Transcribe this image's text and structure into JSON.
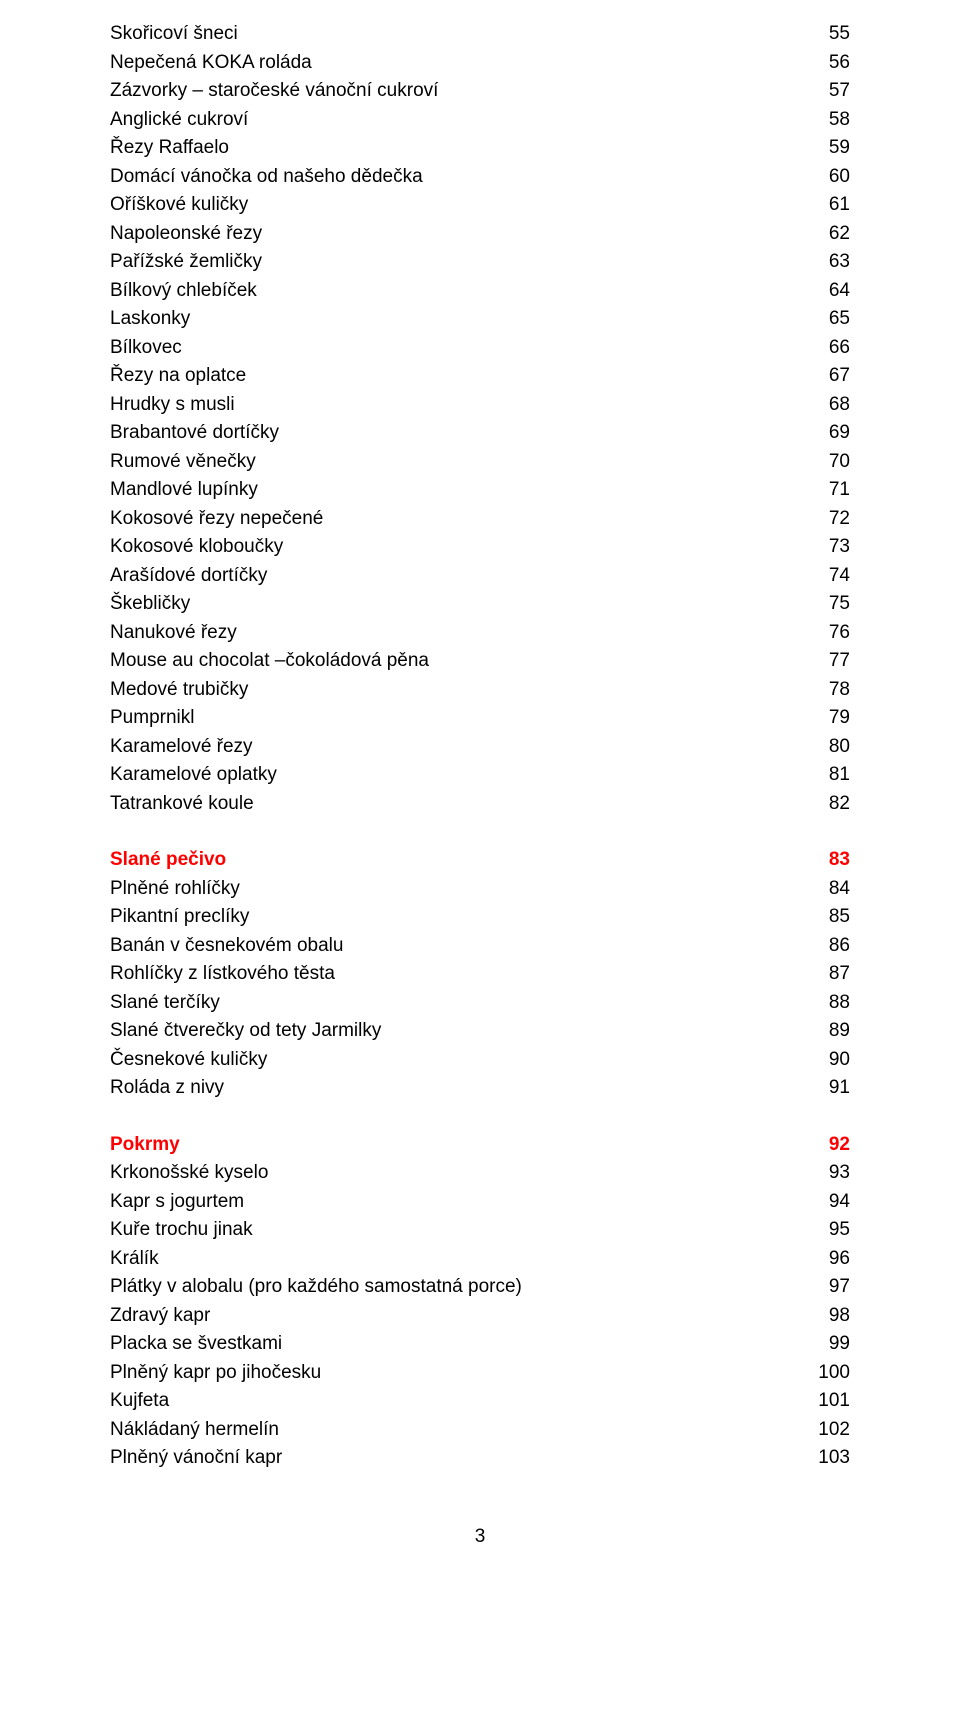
{
  "blocks": [
    {
      "type": "list",
      "items": [
        {
          "label": "Skořicoví šneci",
          "page": "55"
        },
        {
          "label": "Nepečená KOKA roláda",
          "page": "56"
        },
        {
          "label": "Zázvorky – staročeské vánoční cukroví",
          "page": "57"
        },
        {
          "label": "Anglické cukroví",
          "page": "58"
        },
        {
          "label": "Řezy Raffaelo",
          "page": "59"
        },
        {
          "label": "Domácí vánočka od našeho dědečka",
          "page": "60"
        },
        {
          "label": "Oříškové kuličky",
          "page": "61"
        },
        {
          "label": "Napoleonské řezy",
          "page": "62"
        },
        {
          "label": "Pařížské žemličky",
          "page": "63"
        },
        {
          "label": "Bílkový chlebíček",
          "page": "64"
        },
        {
          "label": "Laskonky",
          "page": "65"
        },
        {
          "label": "Bílkovec",
          "page": "66"
        },
        {
          "label": "Řezy na oplatce",
          "page": "67"
        },
        {
          "label": "Hrudky s musli",
          "page": "68"
        },
        {
          "label": "Brabantové dortíčky",
          "page": "69"
        },
        {
          "label": "Rumové věnečky",
          "page": "70"
        },
        {
          "label": "Mandlové lupínky",
          "page": "71"
        },
        {
          "label": "Kokosové řezy nepečené",
          "page": "72"
        },
        {
          "label": "Kokosové kloboučky",
          "page": "73"
        },
        {
          "label": "Arašídové dortíčky",
          "page": "74"
        },
        {
          "label": "Škebličky",
          "page": "75"
        },
        {
          "label": "Nanukové řezy",
          "page": "76"
        },
        {
          "label": "Mouse au chocolat –čokoládová pěna",
          "page": "77"
        },
        {
          "label": "Medové trubičky",
          "page": "78"
        },
        {
          "label": "Pumprnikl",
          "page": "79"
        },
        {
          "label": "Karamelové řezy",
          "page": "80"
        },
        {
          "label": "Karamelové oplatky",
          "page": "81"
        },
        {
          "label": "Tatrankové koule",
          "page": "82"
        }
      ]
    },
    {
      "type": "gap"
    },
    {
      "type": "section",
      "title": "Slané pečivo",
      "page": "83",
      "items": [
        {
          "label": "Plněné rohlíčky",
          "page": "84"
        },
        {
          "label": "Pikantní preclíky",
          "page": "85"
        },
        {
          "label": "Banán v česnekovém obalu",
          "page": "86"
        },
        {
          "label": "Rohlíčky z lístkového těsta",
          "page": "87"
        },
        {
          "label": "Slané terčíky",
          "page": "88"
        },
        {
          "label": "Slané čtverečky od tety Jarmilky",
          "page": "89"
        },
        {
          "label": "Česnekové kuličky",
          "page": "90"
        },
        {
          "label": "Roláda z nivy",
          "page": "91"
        }
      ]
    },
    {
      "type": "gap"
    },
    {
      "type": "section",
      "title": "Pokrmy",
      "page": "92",
      "items": [
        {
          "label": "Krkonošské kyselo",
          "page": "93"
        },
        {
          "label": "Kapr s jogurtem",
          "page": "94"
        },
        {
          "label": "Kuře trochu jinak",
          "page": "95"
        },
        {
          "label": "Králík",
          "page": "96"
        },
        {
          "label": "Plátky v alobalu (pro každého samostatná porce)",
          "page": "97"
        },
        {
          "label": "Zdravý kapr",
          "page": "98"
        },
        {
          "label": "Placka se švestkami",
          "page": "99"
        },
        {
          "label": "Plněný kapr po jihočesku",
          "page": "100"
        },
        {
          "label": "Kujfeta",
          "page": "101"
        },
        {
          "label": "Nákládaný hermelín",
          "page": "102"
        },
        {
          "label": "Plněný vánoční kapr",
          "page": "103"
        }
      ]
    }
  ],
  "pageNumber": "3",
  "colors": {
    "text": "#000000",
    "section": "#ff0000",
    "background": "#ffffff"
  }
}
